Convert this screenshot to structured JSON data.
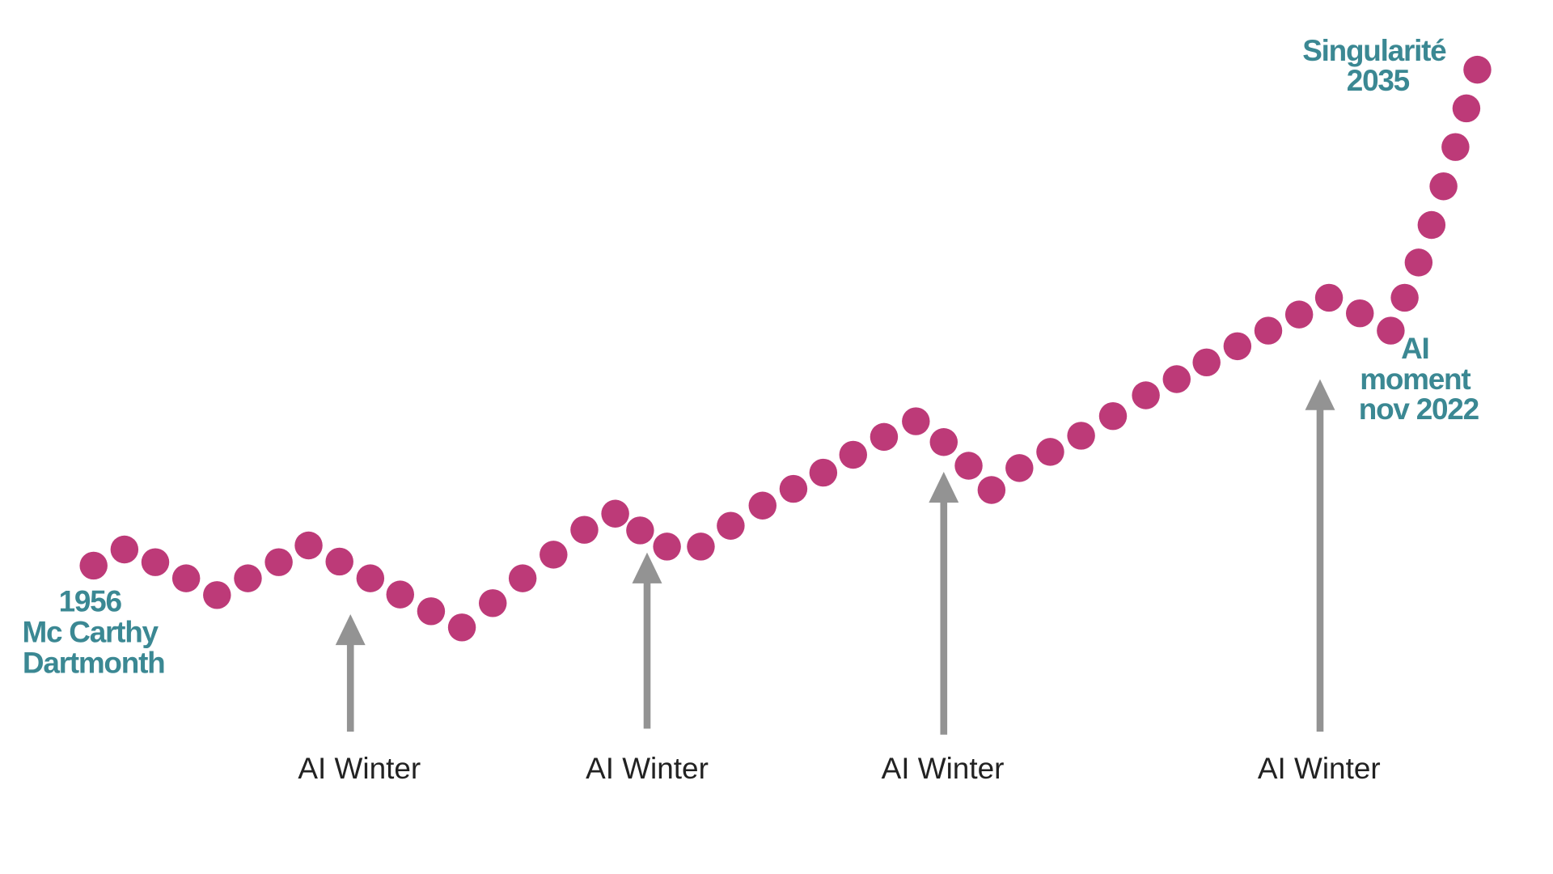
{
  "chart_data": {
    "type": "scatter",
    "title": "",
    "xlabel": "",
    "ylabel": "",
    "grid": false,
    "legend": "none",
    "values": [
      14.1,
      16.9,
      14.7,
      11.9,
      9.0,
      11.9,
      14.7,
      17.6,
      14.8,
      11.9,
      9.1,
      6.2,
      3.4,
      7.6,
      11.9,
      16.0,
      20.3,
      23.1,
      20.2,
      17.4,
      17.4,
      21.0,
      24.5,
      27.4,
      30.2,
      33.3,
      36.4,
      39.1,
      35.5,
      31.4,
      27.2,
      31.0,
      33.8,
      36.6,
      40.0,
      43.6,
      46.4,
      49.3,
      52.1,
      54.8,
      57.6,
      60.5,
      57.8,
      54.8,
      60.5,
      66.6,
      73.1,
      79.8,
      86.6,
      93.3,
      100
    ],
    "ylim": [
      0,
      100
    ],
    "annotations": {
      "start": [
        "1956",
        "Mc Carthy",
        "Dartmonth"
      ],
      "ai_moment": [
        "AI",
        "moment",
        "nov 2022"
      ],
      "end": [
        "Singularité",
        "2035"
      ]
    },
    "winters": [
      "AI Winter",
      "AI Winter",
      "AI Winter",
      "AI Winter"
    ]
  },
  "colors": {
    "dots": "#bd3a78",
    "annotations": "#3b8893",
    "arrows": "#939393"
  }
}
